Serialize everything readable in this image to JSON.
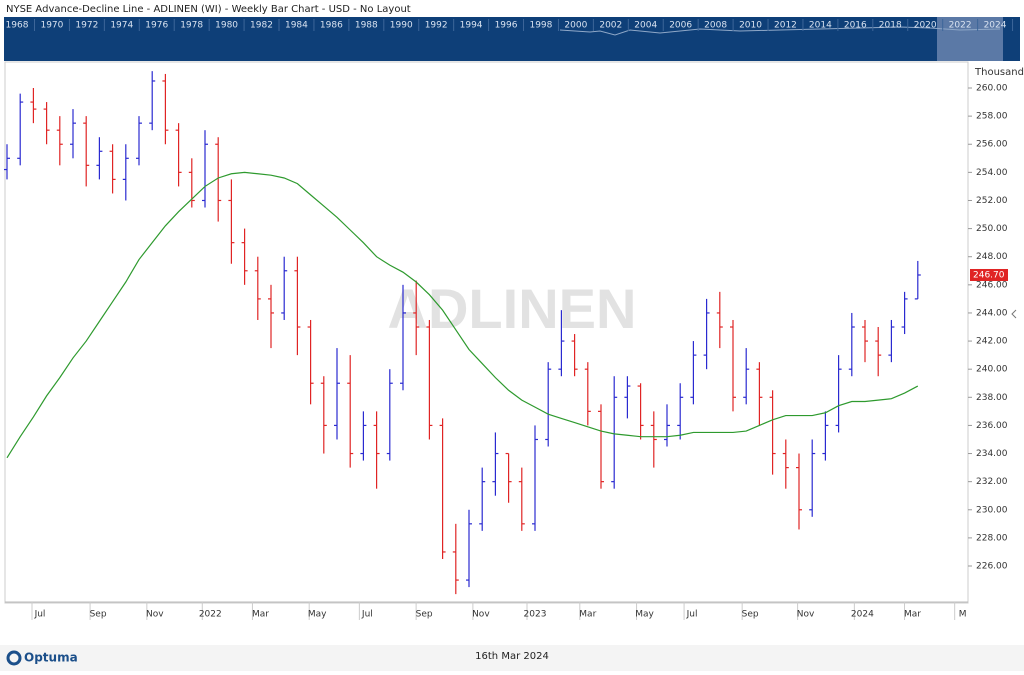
{
  "header": "NYSE  Advance-Decline Line - ADLINEN (WI) - Weekly Bar Chart - USD - No Layout",
  "navigator": {
    "years": [
      "1968",
      "1970",
      "1972",
      "1974",
      "1976",
      "1978",
      "1980",
      "1982",
      "1984",
      "1986",
      "1988",
      "1990",
      "1992",
      "1994",
      "1996",
      "1998",
      "2000",
      "2002",
      "2004",
      "2006",
      "2008",
      "2010",
      "2012",
      "2014",
      "2016",
      "2018",
      "2020",
      "2022",
      "2024"
    ]
  },
  "footer": {
    "brand": "Optuma",
    "date": "16th Mar 2024"
  },
  "chart_data": {
    "type": "ohlc",
    "watermark": "ADLINEN",
    "unit": "Thousand",
    "up_color": "#2a2ad0",
    "down_color": "#e02424",
    "open": [
      254.2,
      255,
      259,
      258.5,
      257,
      256,
      257.5,
      254.5,
      255.5,
      253.5,
      255,
      257.5,
      260.5,
      257,
      254,
      252,
      256,
      252,
      249,
      247,
      245,
      244,
      247,
      243,
      239,
      236,
      239,
      234,
      236,
      234,
      239,
      244,
      243,
      236,
      227,
      225,
      229,
      232,
      234,
      232,
      229,
      235,
      240,
      242,
      240,
      237,
      232,
      238,
      238.8,
      236,
      235,
      236,
      238,
      241,
      244,
      243,
      238,
      240,
      238,
      234,
      233,
      230,
      234,
      236,
      240,
      243,
      242,
      241,
      243,
      245
    ],
    "high": [
      256,
      259.6,
      260,
      259,
      258,
      258.5,
      258,
      256.5,
      256,
      256,
      258,
      261.2,
      261,
      257.5,
      255,
      257,
      256.5,
      253.5,
      250,
      248,
      246,
      248,
      248,
      243.5,
      239.5,
      241.5,
      241,
      237,
      237,
      240,
      246,
      246.3,
      243.5,
      236.5,
      229,
      230,
      233,
      235.5,
      234,
      233,
      236,
      240.5,
      244.2,
      242.5,
      240.5,
      237.5,
      239.5,
      239.5,
      239,
      237,
      237.5,
      239,
      242,
      245,
      245.5,
      243.5,
      241.5,
      240.5,
      238.5,
      235,
      234,
      235,
      237,
      241,
      244,
      243.5,
      243,
      243.5,
      245.5,
      247.7
    ],
    "low": [
      253.5,
      254.5,
      257.5,
      256,
      254.5,
      255,
      253,
      253.5,
      252.5,
      252,
      254.5,
      257,
      256,
      253,
      251.5,
      251.5,
      250.5,
      247.5,
      246,
      243.5,
      241.5,
      243.5,
      241,
      237.5,
      234,
      235,
      233,
      233.5,
      231.5,
      233.5,
      238.5,
      241,
      235,
      226.5,
      224,
      224.5,
      228.5,
      231,
      230.5,
      228.5,
      228.5,
      234.5,
      239.5,
      239.5,
      236,
      231.5,
      231.5,
      236.5,
      235,
      233,
      234.5,
      235,
      237.5,
      240,
      241.5,
      237,
      237.5,
      236,
      232.5,
      231.5,
      228.6,
      229.5,
      233.5,
      235.5,
      239.5,
      240.5,
      239.5,
      240.5,
      242.5,
      245
    ],
    "close": [
      255,
      259,
      258.5,
      257,
      256,
      257.5,
      254.5,
      255.5,
      253.5,
      255,
      257.5,
      260.5,
      257,
      254,
      252,
      256,
      252,
      249,
      247,
      245,
      244,
      247,
      243,
      239,
      236,
      239,
      234,
      236,
      234,
      239,
      244,
      243,
      236,
      227,
      225,
      229,
      232,
      234,
      232,
      229,
      235,
      240,
      242,
      240,
      237,
      232,
      238,
      238.8,
      236,
      235,
      236,
      238,
      241,
      244,
      243,
      238,
      240,
      238,
      234,
      233,
      230,
      234,
      236,
      240,
      243,
      242,
      241,
      243,
      245,
      246.7
    ],
    "last_label": "246.70",
    "average": {
      "color": "#2e9a2e",
      "values": [
        233.7,
        235.2,
        236.6,
        238.1,
        239.4,
        240.8,
        242.0,
        243.4,
        244.8,
        246.2,
        247.8,
        249.0,
        250.2,
        251.2,
        252.1,
        253.0,
        253.6,
        253.9,
        254.0,
        253.9,
        253.8,
        253.6,
        253.2,
        252.4,
        251.6,
        250.8,
        249.9,
        249.0,
        248.0,
        247.4,
        246.9,
        246.2,
        245.3,
        244.2,
        242.8,
        241.4,
        240.4,
        239.4,
        238.5,
        237.8,
        237.3,
        236.8,
        236.5,
        236.2,
        235.9,
        235.6,
        235.4,
        235.3,
        235.2,
        235.2,
        235.2,
        235.3,
        235.5,
        235.5,
        235.5,
        235.5,
        235.6,
        236.0,
        236.4,
        236.7,
        236.7,
        236.7,
        236.9,
        237.4,
        237.7,
        237.7,
        237.8,
        237.9,
        238.3,
        238.8
      ]
    },
    "ylim": [
      223.44,
      261.85
    ],
    "yticks": [
      {
        "value": 226,
        "label": "226.00"
      },
      {
        "value": 228,
        "label": "228.00"
      },
      {
        "value": 230,
        "label": "230.00"
      },
      {
        "value": 232,
        "label": "232.00"
      },
      {
        "value": 234,
        "label": "234.00"
      },
      {
        "value": 236,
        "label": "236.00"
      },
      {
        "value": 238,
        "label": "238.00"
      },
      {
        "value": 240,
        "label": "240.00"
      },
      {
        "value": 242,
        "label": "242.00"
      },
      {
        "value": 244,
        "label": "244.00"
      },
      {
        "value": 246,
        "label": "246.00"
      },
      {
        "value": 248,
        "label": "248.00"
      },
      {
        "value": 250,
        "label": "250.00"
      },
      {
        "value": 252,
        "label": "252.00"
      },
      {
        "value": 254,
        "label": "254.00"
      },
      {
        "value": 256,
        "label": "256.00"
      },
      {
        "value": 258,
        "label": "258.00"
      },
      {
        "value": 260,
        "label": "260.00"
      }
    ],
    "xticks": [
      {
        "value": 2.5,
        "label": "Jul"
      },
      {
        "value": 6.9,
        "label": "Sep"
      },
      {
        "value": 11.2,
        "label": "Nov"
      },
      {
        "value": 15.4,
        "label": "2022"
      },
      {
        "value": 19.2,
        "label": "Mar"
      },
      {
        "value": 23.5,
        "label": "May"
      },
      {
        "value": 27.3,
        "label": "Jul"
      },
      {
        "value": 31.6,
        "label": "Sep"
      },
      {
        "value": 35.9,
        "label": "Nov"
      },
      {
        "value": 40,
        "label": "2023"
      },
      {
        "value": 44,
        "label": "Mar"
      },
      {
        "value": 48.3,
        "label": "May"
      },
      {
        "value": 51.9,
        "label": "Jul"
      },
      {
        "value": 56.3,
        "label": "Sep"
      },
      {
        "value": 60.5,
        "label": "Nov"
      },
      {
        "value": 64.8,
        "label": "2024"
      },
      {
        "value": 68.6,
        "label": "Mar"
      },
      {
        "value": 72.4,
        "label": "M"
      }
    ]
  }
}
